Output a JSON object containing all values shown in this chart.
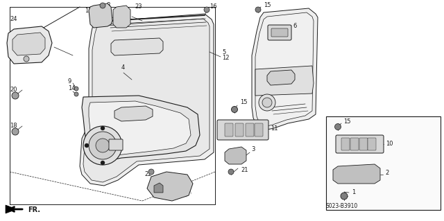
{
  "background_color": "#ffffff",
  "line_color": "#1a1a1a",
  "diagram_code": "S023-B3910",
  "fr_label": "FR.",
  "figsize": [
    6.4,
    3.19
  ],
  "dpi": 100
}
